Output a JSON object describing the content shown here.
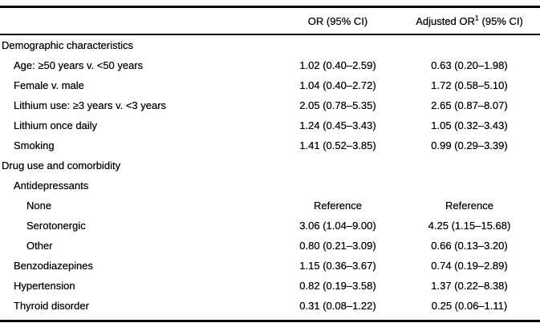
{
  "colors": {
    "background": "#ffffff",
    "text": "#000000",
    "rule": "#000000"
  },
  "table": {
    "columns": {
      "or_header": "OR (95% CI)",
      "adj_prefix": "Adjusted OR",
      "adj_sup": "1",
      "adj_suffix": " (95% CI)"
    },
    "rows": [
      {
        "label": "Demographic characteristics",
        "indent": 0,
        "or": "",
        "adj": ""
      },
      {
        "label": "Age: ≥50 years v. <50 years",
        "indent": 1,
        "or": "1.02 (0.40–2.59)",
        "adj": "0.63 (0.20–1.98)"
      },
      {
        "label": "Female v. male",
        "indent": 1,
        "or": "1.04 (0.40–2.72)",
        "adj": "1.72 (0.58–5.10)"
      },
      {
        "label": "Lithium use: ≥3 years v. <3 years",
        "indent": 1,
        "or": "2.05 (0.78–5.35)",
        "adj": "2.65 (0.87–8.07)"
      },
      {
        "label": "Lithium once daily",
        "indent": 1,
        "or": "1.24 (0.45–3.43)",
        "adj": "1.05 (0.32–3.43)"
      },
      {
        "label": "Smoking",
        "indent": 1,
        "or": "1.41 (0.52–3.85)",
        "adj": "0.99 (0.29–3.39)"
      },
      {
        "label": "Drug use and comorbidity",
        "indent": 0,
        "or": "",
        "adj": ""
      },
      {
        "label": "Antidepressants",
        "indent": 1,
        "or": "",
        "adj": ""
      },
      {
        "label": "None",
        "indent": 2,
        "or": "Reference",
        "adj": "Reference"
      },
      {
        "label": "Serotonergic",
        "indent": 2,
        "or": "3.06 (1.04–9.00)",
        "adj": "4.25 (1.15–15.68)"
      },
      {
        "label": "Other",
        "indent": 2,
        "or": "0.80 (0.21–3.09)",
        "adj": "0.66 (0.13–3.20)"
      },
      {
        "label": "Benzodiazepines",
        "indent": 1,
        "or": "1.15 (0.36–3.67)",
        "adj": "0.74 (0.19–2.89)"
      },
      {
        "label": "Hypertension",
        "indent": 1,
        "or": "0.82 (0.19–3.58)",
        "adj": "1.37 (0.22–8.38)"
      },
      {
        "label": "Thyroid disorder",
        "indent": 1,
        "or": "0.31 (0.08–1.22)",
        "adj": "0.25 (0.06–1.11)"
      }
    ]
  }
}
